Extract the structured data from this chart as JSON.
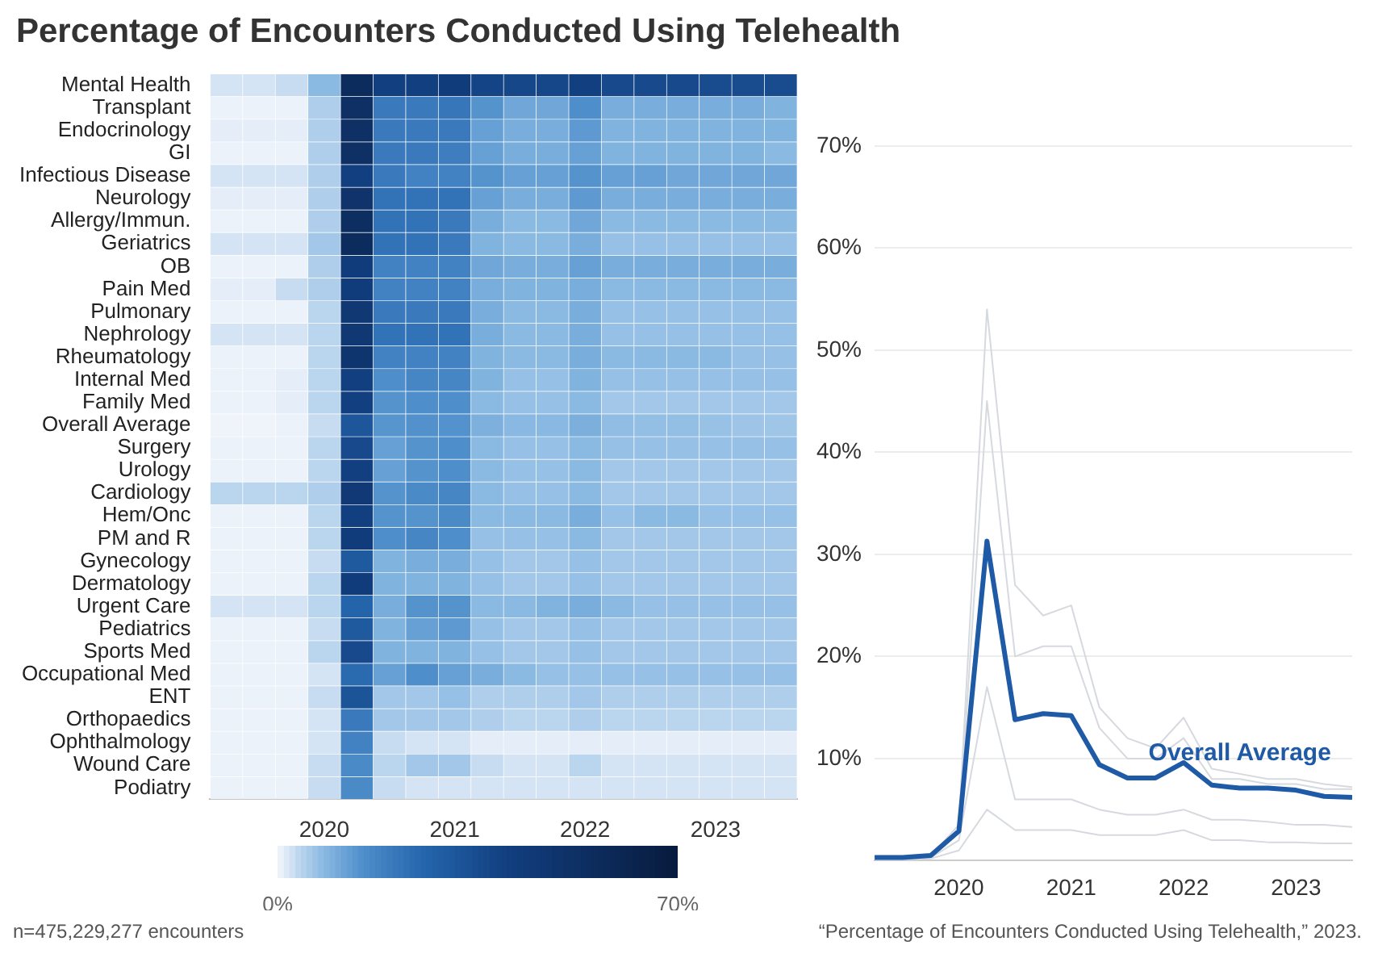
{
  "chart_data": [
    {
      "type": "heatmap",
      "title": "Percentage of Encounters Conducted Using Telehealth",
      "categories": [
        null,
        null,
        null,
        "2020",
        null,
        null,
        null,
        "2021",
        null,
        null,
        null,
        "2022",
        null,
        null,
        null,
        "2023",
        null,
        null
      ],
      "y_categories": [
        "Mental Health",
        "Transplant",
        "Endocrinology",
        "GI",
        "Infectious Disease",
        "Neurology",
        "Allergy/Immun.",
        "Geriatrics",
        "OB",
        "Pain Med",
        "Pulmonary",
        "Nephrology",
        "Rheumatology",
        "Internal Med",
        "Family Med",
        "Overall Average",
        "Surgery",
        "Urology",
        "Cardiology",
        "Hem/Onc",
        "PM and R",
        "Gynecology",
        "Dermatology",
        "Urgent Care",
        "Pediatrics",
        "Sports Med",
        "Occupational Med",
        "ENT",
        "Orthopaedics",
        "Ophthalmology",
        "Wound Care",
        "Podiatry"
      ],
      "cells": [
        [
          2,
          2,
          3,
          8,
          55,
          40,
          40,
          42,
          38,
          37,
          37,
          40,
          36,
          36,
          36,
          35,
          35,
          35
        ],
        [
          0.5,
          0.5,
          0.5,
          5,
          52,
          20,
          20,
          21,
          14,
          11,
          11,
          15,
          10,
          10,
          10,
          10,
          10,
          9
        ],
        [
          1,
          1,
          1,
          5,
          52,
          20,
          20,
          20,
          12,
          10,
          10,
          13,
          9,
          9,
          9,
          9,
          9,
          9
        ],
        [
          0.5,
          0.5,
          0.5,
          5,
          52,
          20,
          20,
          19,
          12,
          10,
          10,
          12,
          9,
          9,
          9,
          9,
          9,
          8
        ],
        [
          2,
          2,
          2,
          5,
          40,
          20,
          18,
          18,
          14,
          12,
          12,
          14,
          12,
          12,
          11,
          11,
          11,
          11
        ],
        [
          1,
          1,
          1,
          5,
          50,
          22,
          22,
          22,
          12,
          10,
          10,
          13,
          10,
          10,
          10,
          10,
          10,
          10
        ],
        [
          0.5,
          0.5,
          0.5,
          5,
          54,
          22,
          22,
          20,
          10,
          8,
          8,
          11,
          8,
          8,
          8,
          8,
          8,
          8
        ],
        [
          2,
          2,
          2,
          6,
          55,
          22,
          22,
          20,
          9,
          8,
          8,
          10,
          7,
          7,
          7,
          7,
          7,
          7
        ],
        [
          0.5,
          0.5,
          0.5,
          5,
          42,
          18,
          18,
          18,
          11,
          10,
          10,
          12,
          10,
          10,
          10,
          10,
          10,
          10
        ],
        [
          1,
          1,
          3,
          5,
          42,
          18,
          18,
          18,
          10,
          9,
          9,
          10,
          8,
          8,
          8,
          8,
          8,
          8
        ],
        [
          0.5,
          0.5,
          0.5,
          4,
          46,
          20,
          20,
          20,
          10,
          8,
          8,
          10,
          7,
          7,
          7,
          7,
          7,
          7
        ],
        [
          2,
          2,
          2,
          4,
          46,
          22,
          22,
          22,
          10,
          8,
          8,
          10,
          7,
          7,
          7,
          7,
          7,
          7
        ],
        [
          0.5,
          0.5,
          0.5,
          4,
          48,
          18,
          18,
          18,
          9,
          8,
          8,
          10,
          8,
          8,
          8,
          8,
          7,
          7
        ],
        [
          0.5,
          0.5,
          1,
          4,
          40,
          15,
          17,
          17,
          9,
          7,
          7,
          9,
          7,
          7,
          7,
          7,
          7,
          7
        ],
        [
          0.5,
          0.5,
          1,
          4,
          40,
          14,
          15,
          15,
          8,
          7,
          7,
          8,
          6,
          6,
          6,
          6,
          6,
          6
        ],
        [
          0.3,
          0.3,
          0.5,
          2.9,
          31.3,
          13.8,
          14.4,
          14.2,
          9.4,
          8.1,
          8.1,
          9.6,
          7.4,
          7.1,
          7.1,
          6.9,
          6.3,
          6.2
        ],
        [
          0.5,
          0.5,
          0.5,
          4,
          36,
          12,
          14,
          15,
          8,
          7,
          7,
          8,
          7,
          7,
          7,
          7,
          7,
          7
        ],
        [
          0.5,
          0.5,
          0.5,
          4,
          40,
          12,
          14,
          15,
          8,
          7,
          7,
          8,
          6,
          6,
          6,
          6,
          6,
          6
        ],
        [
          4,
          4,
          4,
          5,
          45,
          14,
          16,
          17,
          8,
          7,
          7,
          8,
          6,
          6,
          6,
          6,
          6,
          6
        ],
        [
          0.5,
          0.5,
          0.5,
          4,
          40,
          14,
          14,
          16,
          8,
          8,
          8,
          10,
          7,
          8,
          8,
          7,
          7,
          7
        ],
        [
          0.5,
          0.5,
          0.5,
          4,
          42,
          15,
          17,
          15,
          7,
          7,
          7,
          8,
          6,
          6,
          6,
          6,
          6,
          6
        ],
        [
          0.5,
          0.5,
          0.5,
          3,
          30,
          9,
          10,
          10,
          7,
          6,
          6,
          7,
          6,
          6,
          6,
          6,
          6,
          6
        ],
        [
          0.5,
          0.5,
          0.5,
          4,
          42,
          9,
          9,
          9,
          7,
          6,
          6,
          7,
          6,
          6,
          6,
          6,
          6,
          6
        ],
        [
          2,
          2,
          2,
          4,
          26,
          10,
          14,
          14,
          8,
          8,
          9,
          10,
          8,
          7,
          7,
          7,
          7,
          7
        ],
        [
          0.5,
          0.5,
          0.5,
          3,
          30,
          9,
          12,
          13,
          7,
          6,
          6,
          7,
          6,
          6,
          6,
          6,
          6,
          6
        ],
        [
          0.5,
          0.5,
          0.5,
          4,
          36,
          9,
          9,
          9,
          7,
          6,
          6,
          7,
          6,
          6,
          6,
          6,
          6,
          6
        ],
        [
          0.5,
          0.5,
          0.5,
          2,
          24,
          12,
          15,
          12,
          10,
          8,
          7,
          7,
          7,
          7,
          7,
          7,
          7,
          7
        ],
        [
          0.5,
          0.5,
          0.5,
          3,
          32,
          6,
          6,
          7,
          5,
          5,
          5,
          6,
          5,
          5,
          5,
          5,
          5,
          5
        ],
        [
          0.5,
          0.5,
          0.5,
          2,
          20,
          6,
          6,
          6,
          5,
          4,
          4,
          5,
          4,
          4,
          4,
          4,
          4,
          4
        ],
        [
          0.5,
          0.5,
          0.5,
          2,
          18,
          3,
          2,
          2,
          1,
          1,
          1,
          1,
          1,
          1,
          1,
          1,
          1,
          1
        ],
        [
          0.5,
          0.5,
          0.5,
          3,
          16,
          4,
          6,
          6,
          3,
          2,
          2,
          4,
          2,
          2,
          2,
          2,
          2,
          2
        ],
        [
          0.5,
          0.5,
          0.5,
          3,
          16,
          3,
          2,
          2,
          2,
          2,
          2,
          2,
          2,
          2,
          2,
          2,
          2,
          2
        ]
      ],
      "clim": [
        0,
        70
      ],
      "cticks": [
        {
          "value": 0,
          "label": "0%"
        },
        {
          "value": 70,
          "label": "70%"
        }
      ],
      "annotations": [
        "n=475,229,277 encounters"
      ]
    },
    {
      "type": "line",
      "x": [
        2019.25,
        2019.5,
        2019.75,
        2020,
        2020.25,
        2020.5,
        2020.75,
        2021,
        2021.25,
        2021.5,
        2021.75,
        2022,
        2022.25,
        2022.5,
        2022.75,
        2023,
        2023.25,
        2023.5
      ],
      "xlim": [
        2019.25,
        2023.5
      ],
      "xticks": [
        2020,
        2021,
        2022,
        2023
      ],
      "ylim": [
        0,
        70
      ],
      "yticks": [
        {
          "value": 10,
          "label": "10%"
        },
        {
          "value": 20,
          "label": "20%"
        },
        {
          "value": 30,
          "label": "30%"
        },
        {
          "value": 40,
          "label": "40%"
        },
        {
          "value": 50,
          "label": "50%"
        },
        {
          "value": 60,
          "label": "60%"
        },
        {
          "value": 70,
          "label": "70%"
        }
      ],
      "grid": "y",
      "legend": false,
      "marker": "none",
      "line_style": "solid",
      "series": [
        {
          "color": "#d6d9de",
          "values": [
            0.3,
            0.3,
            0.5,
            3.5,
            54,
            27,
            24,
            25,
            15,
            12,
            11,
            14,
            9,
            8.5,
            8,
            8,
            7.5,
            7.2
          ]
        },
        {
          "color": "#d6d9de",
          "values": [
            0.2,
            0.2,
            0.4,
            3,
            45,
            20,
            21,
            21,
            13,
            10,
            10,
            12,
            8,
            8,
            7.5,
            7.5,
            7,
            7
          ]
        },
        {
          "color": "#d6d9de",
          "values": [
            0.1,
            0.1,
            0.3,
            2,
            17,
            6,
            6,
            6,
            5,
            4.5,
            4.5,
            5,
            4,
            4,
            3.8,
            3.5,
            3.5,
            3.3
          ]
        },
        {
          "color": "#d6d9de",
          "values": [
            0.1,
            0.1,
            0.2,
            1,
            5,
            3,
            3,
            3,
            2.5,
            2.5,
            2.5,
            3,
            2,
            2,
            1.8,
            1.8,
            1.7,
            1.7
          ]
        },
        {
          "name": "Overall Average",
          "color": "#1f5aa6",
          "values": [
            0.3,
            0.3,
            0.5,
            2.9,
            31.3,
            13.8,
            14.4,
            14.2,
            9.4,
            8.1,
            8.1,
            9.6,
            7.4,
            7.1,
            7.1,
            6.9,
            6.3,
            6.2
          ]
        }
      ],
      "annotations": [
        "“Percentage of Encounters Conducted Using Telehealth,” 2023."
      ]
    }
  ]
}
